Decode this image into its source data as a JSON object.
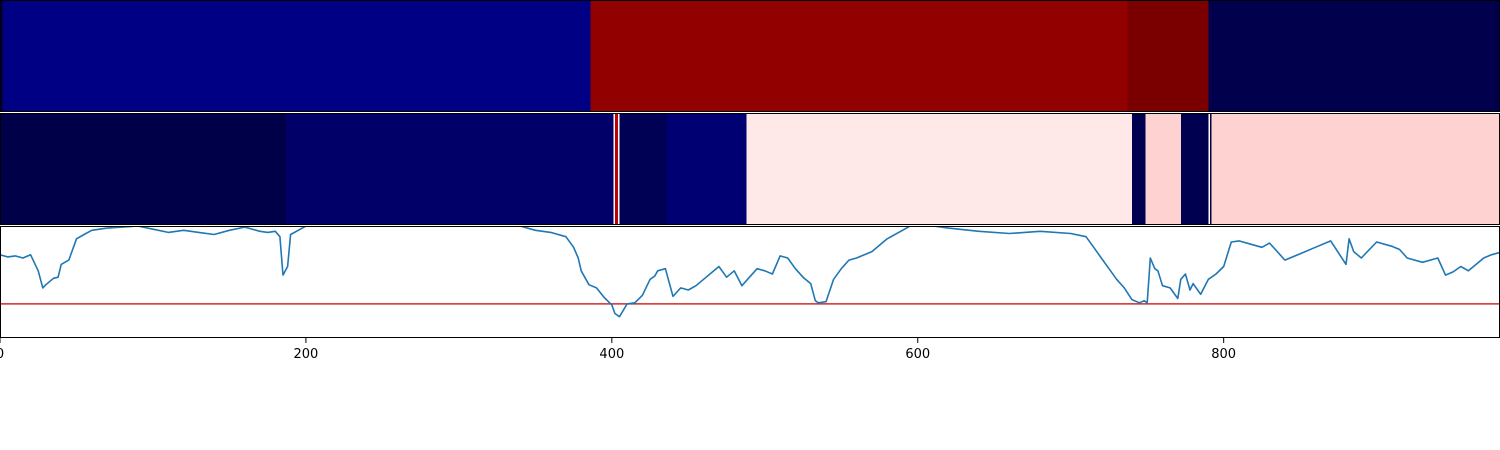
{
  "chart_data": [
    {
      "type": "heatmap",
      "panel": "top-band",
      "colormap": "seismic",
      "xlim": [
        0,
        980
      ],
      "segments": [
        {
          "start": 0,
          "end": 2,
          "color": "#000044"
        },
        {
          "start": 2,
          "end": 386,
          "color": "#000085"
        },
        {
          "start": 386,
          "end": 737,
          "color": "#920000"
        },
        {
          "start": 737,
          "end": 790,
          "color": "#7A0000"
        },
        {
          "start": 790,
          "end": 980,
          "color": "#00004D"
        }
      ]
    },
    {
      "type": "heatmap",
      "panel": "middle-band",
      "colormap": "seismic",
      "xlim": [
        0,
        980
      ],
      "segments": [
        {
          "start": 0,
          "end": 187,
          "color": "#000048"
        },
        {
          "start": 187,
          "end": 401,
          "color": "#000068"
        },
        {
          "start": 401,
          "end": 402,
          "color": "#FFFFFF"
        },
        {
          "start": 402,
          "end": 404,
          "color": "#C00000"
        },
        {
          "start": 404,
          "end": 405,
          "color": "#FFFFFF"
        },
        {
          "start": 405,
          "end": 436,
          "color": "#000055"
        },
        {
          "start": 436,
          "end": 488,
          "color": "#000072"
        },
        {
          "start": 488,
          "end": 740,
          "color": "#FFE8E8"
        },
        {
          "start": 740,
          "end": 749,
          "color": "#000050"
        },
        {
          "start": 749,
          "end": 772,
          "color": "#FFD2D2"
        },
        {
          "start": 772,
          "end": 790,
          "color": "#000050"
        },
        {
          "start": 790,
          "end": 791,
          "color": "#FFFFFF"
        },
        {
          "start": 791,
          "end": 792,
          "color": "#000040"
        },
        {
          "start": 792,
          "end": 980,
          "color": "#FFD2D2"
        }
      ]
    },
    {
      "type": "line",
      "panel": "bottom-signal",
      "xlim": [
        0,
        980
      ],
      "ylim": [
        -0.05,
        1.0
      ],
      "threshold": 0.27,
      "line_color": "#1f77b4",
      "threshold_color": "#d62728",
      "xticks": [
        0,
        200,
        400,
        600,
        800
      ],
      "xtick_labels": [
        "0",
        "200",
        "400",
        "600",
        "800"
      ],
      "series": [
        {
          "x": [
            0,
            5,
            10,
            15,
            20,
            25,
            28,
            30,
            35,
            38,
            40,
            45,
            50,
            55,
            60,
            70,
            80,
            90,
            100,
            110,
            120,
            130,
            140,
            150,
            160,
            170,
            175,
            180,
            183,
            185,
            188,
            190,
            195,
            200,
            210,
            220,
            240,
            260,
            280,
            300,
            320,
            340,
            350,
            360,
            370,
            375,
            378,
            380,
            385,
            390,
            395,
            400,
            402,
            405,
            410,
            415,
            420,
            425,
            428,
            430,
            435,
            440,
            445,
            450,
            455,
            460,
            465,
            470,
            475,
            480,
            485,
            490,
            495,
            500,
            505,
            510,
            515,
            520,
            525,
            530,
            533,
            535,
            540,
            545,
            550,
            555,
            560,
            570,
            580,
            590,
            595,
            600,
            610,
            620,
            640,
            660,
            680,
            700,
            710,
            715,
            720,
            725,
            730,
            735,
            740,
            745,
            748,
            750,
            752,
            755,
            757,
            760,
            765,
            770,
            772,
            775,
            778,
            780,
            785,
            790,
            795,
            800,
            805,
            810,
            820,
            825,
            830,
            840,
            850,
            860,
            870,
            880,
            882,
            885,
            890,
            900,
            910,
            915,
            920,
            930,
            940,
            945,
            950,
            955,
            960,
            965,
            970,
            975,
            980
          ],
          "y": [
            0.73,
            0.71,
            0.72,
            0.7,
            0.73,
            0.58,
            0.42,
            0.45,
            0.51,
            0.52,
            0.64,
            0.68,
            0.88,
            0.92,
            0.96,
            0.98,
            0.99,
            1.0,
            0.97,
            0.94,
            0.96,
            0.94,
            0.92,
            0.96,
            0.99,
            0.95,
            0.94,
            0.95,
            0.9,
            0.54,
            0.62,
            0.92,
            0.96,
            1.0,
            1.0,
            1.0,
            1.0,
            1.0,
            1.0,
            1.0,
            1.0,
            1.0,
            0.96,
            0.94,
            0.9,
            0.8,
            0.7,
            0.58,
            0.45,
            0.42,
            0.33,
            0.26,
            0.18,
            0.15,
            0.27,
            0.28,
            0.35,
            0.5,
            0.53,
            0.58,
            0.6,
            0.34,
            0.42,
            0.4,
            0.44,
            0.5,
            0.56,
            0.62,
            0.52,
            0.58,
            0.44,
            0.52,
            0.6,
            0.58,
            0.55,
            0.72,
            0.7,
            0.6,
            0.52,
            0.46,
            0.3,
            0.28,
            0.29,
            0.5,
            0.6,
            0.68,
            0.7,
            0.76,
            0.88,
            0.96,
            1.0,
            1.0,
            1.0,
            0.98,
            0.95,
            0.93,
            0.95,
            0.93,
            0.9,
            0.8,
            0.7,
            0.6,
            0.5,
            0.42,
            0.31,
            0.28,
            0.3,
            0.28,
            0.7,
            0.6,
            0.58,
            0.44,
            0.42,
            0.32,
            0.5,
            0.55,
            0.4,
            0.46,
            0.36,
            0.5,
            0.55,
            0.62,
            0.85,
            0.86,
            0.82,
            0.8,
            0.84,
            0.68,
            0.74,
            0.8,
            0.86,
            0.64,
            0.88,
            0.76,
            0.7,
            0.85,
            0.81,
            0.78,
            0.7,
            0.66,
            0.7,
            0.54,
            0.57,
            0.62,
            0.58,
            0.64,
            0.7,
            0.73,
            0.75
          ]
        }
      ]
    }
  ]
}
